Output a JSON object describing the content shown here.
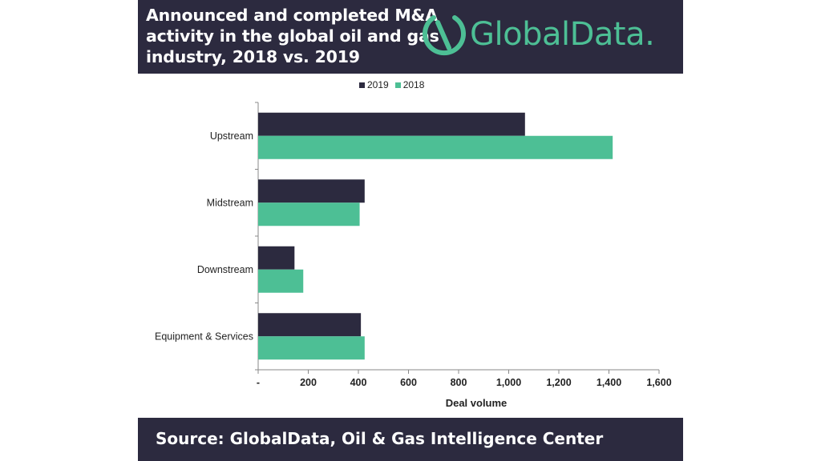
{
  "header": {
    "title": "Announced and completed M&A activity in the global oil and gas industry, 2018 vs. 2019",
    "logo_text": "GlobalData."
  },
  "footer": {
    "source": "Source:  GlobalData, Oil & Gas Intelligence Center"
  },
  "colors": {
    "dark": "#2c2a3f",
    "accent": "#4dbf95"
  },
  "chart_data": {
    "type": "bar",
    "orientation": "horizontal",
    "categories": [
      "Upstream",
      "Midstream",
      "Downstream",
      "Equipment & Services"
    ],
    "series": [
      {
        "name": "2019",
        "color": "#2c2a3f",
        "values": [
          1065,
          425,
          145,
          410
        ]
      },
      {
        "name": "2018",
        "color": "#4dbf95",
        "values": [
          1415,
          405,
          180,
          425
        ]
      }
    ],
    "xlabel": "Deal volume",
    "ylabel": "",
    "xlim": [
      0,
      1600
    ],
    "x_ticks": [
      0,
      200,
      400,
      600,
      800,
      1000,
      1200,
      1400,
      1600
    ],
    "x_tick_labels": [
      "-",
      "200",
      "400",
      "600",
      "800",
      "1,000",
      "1,200",
      "1,400",
      "1,600"
    ],
    "legend_position": "top",
    "grid": false
  }
}
